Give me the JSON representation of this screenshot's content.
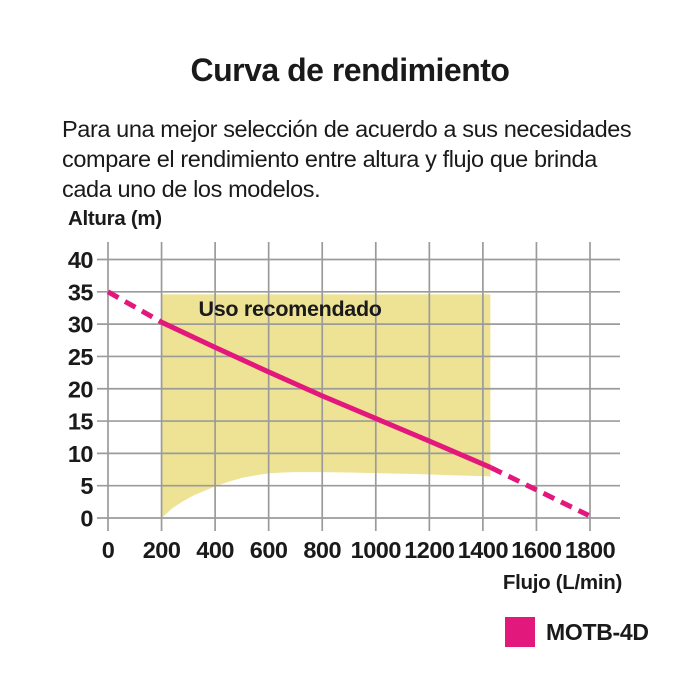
{
  "page": {
    "title": "Curva de rendimiento",
    "description_lines": [
      "Para una mejor selección de acuerdo a sus necesidades",
      "compare el rendimiento entre altura y flujo que brinda",
      "cada uno de los modelos."
    ]
  },
  "colors": {
    "accent_pink": "#E3187C",
    "recommended_fill": "#EEE294",
    "grid": "#9B9B9B",
    "text": "#1A1A1A"
  },
  "chart_data": {
    "type": "line",
    "title": "Curva de rendimiento",
    "xlabel": "Flujo (L/min)",
    "ylabel": "Altura (m)",
    "xlim": [
      0,
      1800
    ],
    "ylim": [
      0,
      40
    ],
    "x_ticks": [
      0,
      200,
      400,
      600,
      800,
      1000,
      1200,
      1400,
      1600,
      1800
    ],
    "y_ticks": [
      0,
      5,
      10,
      15,
      20,
      25,
      30,
      35,
      40
    ],
    "grid": true,
    "series": [
      {
        "name": "MOTB-4D",
        "color": "#E3187C",
        "segments": [
          {
            "style": "dashed",
            "points": [
              [
                0,
                35
              ],
              [
                200,
                30.3
              ]
            ]
          },
          {
            "style": "solid",
            "points": [
              [
                200,
                30.3
              ],
              [
                400,
                26.4
              ],
              [
                600,
                22.6
              ],
              [
                800,
                18.9
              ],
              [
                1000,
                15.4
              ],
              [
                1200,
                11.9
              ],
              [
                1430,
                7.8
              ]
            ]
          },
          {
            "style": "dashed",
            "points": [
              [
                1430,
                7.8
              ],
              [
                1795,
                0.4
              ]
            ]
          }
        ]
      }
    ],
    "recommended_region": {
      "label": "Uso recomendado",
      "fill": "#EEE294",
      "label_pos": [
        680,
        32.4
      ],
      "polygon": [
        [
          200,
          34.6
        ],
        [
          1428,
          34.6
        ],
        [
          1428,
          6.45
        ],
        [
          1300,
          6.6
        ],
        [
          1150,
          6.8
        ],
        [
          1000,
          6.95
        ],
        [
          900,
          7.05
        ],
        [
          800,
          7.1
        ],
        [
          700,
          7.1
        ],
        [
          650,
          7.05
        ],
        [
          600,
          6.9
        ],
        [
          550,
          6.6
        ],
        [
          500,
          6.2
        ],
        [
          450,
          5.6
        ],
        [
          400,
          4.9
        ],
        [
          360,
          4.2
        ],
        [
          320,
          3.5
        ],
        [
          280,
          2.6
        ],
        [
          240,
          1.5
        ],
        [
          200,
          0
        ]
      ]
    },
    "legend": {
      "position": "bottom-right",
      "entries": [
        {
          "label": "MOTB-4D",
          "color": "#E3187C"
        }
      ]
    }
  }
}
